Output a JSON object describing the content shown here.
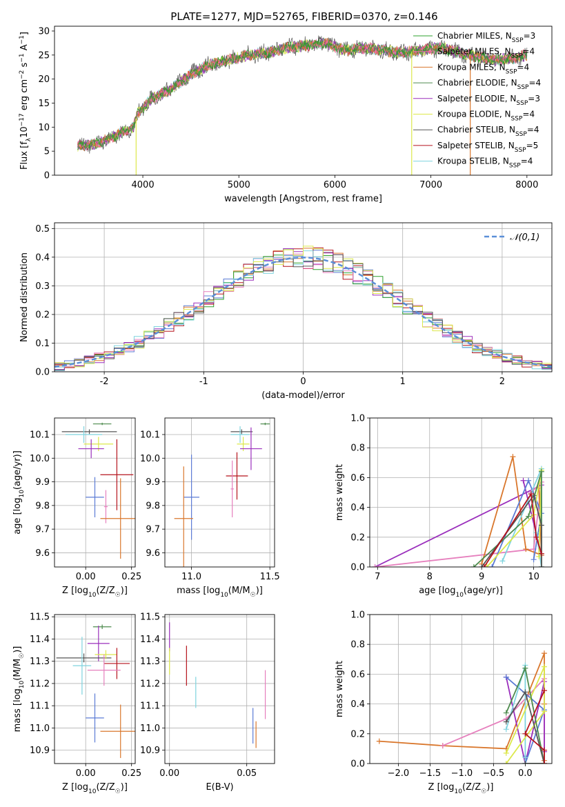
{
  "figure": {
    "title": "PLATE=1277, MJD=52765, FIBERID=0370, z=0.146"
  },
  "chart_data": [
    {
      "id": "spectrum",
      "type": "line",
      "title": "PLATE=1277, MJD=52765, FIBERID=0370, z=0.146",
      "xlabel": "wavelength [Angstrom, rest frame]",
      "ylabel": "Flux [f_λ 10^-17 erg cm^-2 s^-1 A^-1]",
      "xlim": [
        3080,
        8260
      ],
      "ylim": [
        0,
        31
      ],
      "xticks": [
        4000,
        5000,
        6000,
        7000,
        8000
      ],
      "yticks": [
        0,
        5,
        10,
        15,
        20,
        25,
        30
      ],
      "grid": false,
      "legend_position": "top-right",
      "continuum": {
        "x": [
          3320,
          3500,
          3700,
          3900,
          3950,
          4100,
          4300,
          4500,
          4700,
          4900,
          5100,
          5300,
          5500,
          5700,
          5900,
          6100,
          6300,
          6500,
          6700,
          6900,
          7100,
          7300,
          7500,
          7700,
          7900,
          8000
        ],
        "y": [
          6,
          6.5,
          8,
          10,
          13,
          16,
          18,
          21,
          23,
          24,
          25,
          25.5,
          26.5,
          27,
          27.5,
          26,
          26.5,
          26,
          25.5,
          26,
          26.5,
          25.5,
          24.5,
          24,
          24.5,
          25
        ]
      },
      "drops": [
        {
          "x": 3930,
          "series": "Kroupa ELODIE"
        },
        {
          "x": 6800,
          "series": "Kroupa ELODIE"
        },
        {
          "x": 7410,
          "series": "Kroupa MILES"
        }
      ],
      "series": [
        {
          "name": "Chabrier MILES",
          "nssp": "3",
          "color": "#2ca02c"
        },
        {
          "name": "Salpeter MILES",
          "nssp": "4",
          "color": "#f06ba8"
        },
        {
          "name": "Kroupa MILES",
          "nssp": "4",
          "color": "#d9762b"
        },
        {
          "name": "Chabrier ELODIE",
          "nssp": "4",
          "color": "#4d8a4d"
        },
        {
          "name": "Salpeter ELODIE",
          "nssp": "3",
          "color": "#9a2ebc"
        },
        {
          "name": "Kroupa ELODIE",
          "nssp": "4",
          "color": "#dce84a"
        },
        {
          "name": "Chabrier STELIB",
          "nssp": "4",
          "color": "#555555"
        },
        {
          "name": "Salpeter STELIB",
          "nssp": "5",
          "color": "#b5121b"
        },
        {
          "name": "Kroupa STELIB",
          "nssp": "4",
          "color": "#7ed3de"
        }
      ]
    },
    {
      "id": "residuals",
      "type": "histogram",
      "xlabel": "(data-model)/error",
      "ylabel": "Normed distribution",
      "xlim": [
        -2.5,
        2.5
      ],
      "ylim": [
        0,
        0.52
      ],
      "xticks": [
        -2,
        -1,
        0,
        1,
        2
      ],
      "yticks": [
        0.0,
        0.1,
        0.2,
        0.3,
        0.4,
        0.5
      ],
      "grid": true,
      "legend_position": "top-right",
      "legend_label": "𝒩(0,1)",
      "bin_width": 0.1,
      "sigma": 1.0,
      "peak": 0.399,
      "colors": [
        "#5b7bd5",
        "#d9762b",
        "#2ca02c",
        "#b5121b",
        "#9a2ebc",
        "#e67fbd",
        "#7ed3de",
        "#dce84a",
        "#555555"
      ],
      "reference_color": "#5b8fd8"
    },
    {
      "id": "age-vs-Z",
      "type": "errorbar",
      "xlabel": "Z [log10(Z/Z☉)]",
      "ylabel": "age  [log10(age/yr)]",
      "xlim": [
        -0.17,
        0.27
      ],
      "ylim": [
        9.54,
        10.17
      ],
      "xticks": [
        0.0,
        0.25
      ],
      "xticklabels": [
        "0.00",
        "0.25"
      ],
      "yticks": [
        9.6,
        9.7,
        9.8,
        9.9,
        10.0,
        10.1
      ],
      "grid": true,
      "points": [
        {
          "x": 0.09,
          "y": 10.145,
          "xerr": 0.05,
          "yerr": 0.005,
          "color": "#4d8a4d"
        },
        {
          "x": 0.02,
          "y": 10.112,
          "xerr": 0.15,
          "yerr": 0.01,
          "color": "#555555"
        },
        {
          "x": -0.01,
          "y": 10.1,
          "xerr": 0.1,
          "yerr": 0.035,
          "color": "#7ed3de"
        },
        {
          "x": 0.07,
          "y": 10.06,
          "xerr": 0.08,
          "yerr": 0.03,
          "color": "#dce84a"
        },
        {
          "x": 0.03,
          "y": 10.04,
          "xerr": 0.07,
          "yerr": 0.04,
          "color": "#9a2ebc"
        },
        {
          "x": 0.17,
          "y": 9.93,
          "xerr": 0.09,
          "yerr": 0.15,
          "color": "#b5121b"
        },
        {
          "x": 0.05,
          "y": 9.835,
          "xerr": 0.05,
          "yerr": 0.085,
          "color": "#5b7bd5"
        },
        {
          "x": 0.11,
          "y": 9.795,
          "xerr": 0.01,
          "yerr": 0.07,
          "color": "#e67fbd"
        },
        {
          "x": 0.19,
          "y": 9.745,
          "xerr": 0.11,
          "yerr": 0.17,
          "color": "#d9762b"
        }
      ]
    },
    {
      "id": "age-vs-mass",
      "type": "errorbar",
      "xlabel": "mass [log10(M/M☉)]",
      "ylabel": "",
      "xlim": [
        10.83,
        11.53
      ],
      "ylim": [
        9.54,
        10.17
      ],
      "xticks": [
        11.0,
        11.5
      ],
      "xticklabels": [
        "11.0",
        "11.5"
      ],
      "yticks": [
        9.6,
        9.7,
        9.8,
        9.9,
        10.0,
        10.1
      ],
      "grid": true,
      "points": [
        {
          "x": 11.47,
          "y": 10.145,
          "xerr": 0.03,
          "yerr": 0.005,
          "color": "#4d8a4d"
        },
        {
          "x": 11.32,
          "y": 10.112,
          "xerr": 0.07,
          "yerr": 0.01,
          "color": "#555555"
        },
        {
          "x": 11.31,
          "y": 10.1,
          "xerr": 0.06,
          "yerr": 0.035,
          "color": "#7ed3de"
        },
        {
          "x": 11.33,
          "y": 10.06,
          "xerr": 0.04,
          "yerr": 0.03,
          "color": "#dce84a"
        },
        {
          "x": 11.38,
          "y": 10.04,
          "xerr": 0.07,
          "yerr": 0.09,
          "color": "#9a2ebc"
        },
        {
          "x": 11.29,
          "y": 9.925,
          "xerr": 0.07,
          "yerr": 0.1,
          "color": "#b5121b"
        },
        {
          "x": 11.0,
          "y": 9.835,
          "xerr": 0.05,
          "yerr": 0.18,
          "color": "#5b7bd5"
        },
        {
          "x": 11.26,
          "y": 9.87,
          "xerr": 0.01,
          "yerr": 0.12,
          "color": "#e67fbd"
        },
        {
          "x": 10.95,
          "y": 9.745,
          "xerr": 0.06,
          "yerr": 0.22,
          "color": "#d9762b"
        }
      ]
    },
    {
      "id": "weight-vs-age",
      "type": "line",
      "xlabel": "age  [log10(age/yr)]",
      "ylabel": "mass weight",
      "xlim": [
        6.85,
        10.35
      ],
      "ylim": [
        0,
        1
      ],
      "xticks": [
        7,
        8,
        9,
        10
      ],
      "yticks": [
        0.0,
        0.2,
        0.4,
        0.6,
        0.8,
        1.0
      ],
      "grid": true,
      "series": [
        {
          "color": "#9a2ebc",
          "x": [
            6.95,
            10.15,
            10.15,
            9.8
          ],
          "y": [
            0.0,
            0.55,
            0.08,
            0.58
          ]
        },
        {
          "color": "#e67fbd",
          "x": [
            6.95,
            10.0,
            10.15,
            9.95
          ],
          "y": [
            0.0,
            0.12,
            0.57,
            0.5
          ]
        },
        {
          "color": "#d9762b",
          "x": [
            9.0,
            9.6,
            9.85,
            10.15,
            10.1
          ],
          "y": [
            0.02,
            0.74,
            0.12,
            0.08,
            0.53
          ]
        },
        {
          "color": "#5b7bd5",
          "x": [
            9.2,
            9.9,
            10.15,
            10.0
          ],
          "y": [
            0.0,
            0.58,
            0.36,
            0.05
          ]
        },
        {
          "color": "#7ed3de",
          "x": [
            9.4,
            10.15,
            10.15,
            10.05
          ],
          "y": [
            0.04,
            0.66,
            0.0,
            0.23
          ]
        },
        {
          "color": "#dce84a",
          "x": [
            9.1,
            10.0,
            10.15,
            10.1
          ],
          "y": [
            0.0,
            0.35,
            0.65,
            0.07
          ]
        },
        {
          "color": "#4d8a4d",
          "x": [
            8.85,
            9.9,
            10.15,
            10.15
          ],
          "y": [
            0.0,
            0.34,
            0.64,
            0.0
          ]
        },
        {
          "color": "#555555",
          "x": [
            9.0,
            10.0,
            10.15,
            10.15
          ],
          "y": [
            0.0,
            0.48,
            0.28,
            0.0
          ]
        },
        {
          "color": "#b5121b",
          "x": [
            9.05,
            9.95,
            10.05,
            10.15
          ],
          "y": [
            0.0,
            0.49,
            0.2,
            0.09
          ]
        }
      ]
    },
    {
      "id": "mass-vs-Z",
      "type": "errorbar",
      "xlabel": "Z [log10(Z/Z☉)]",
      "ylabel": "mass [log10(M/M☉)]",
      "xlim": [
        -0.17,
        0.27
      ],
      "ylim": [
        10.84,
        11.51
      ],
      "xticks": [
        0.0,
        0.25
      ],
      "xticklabels": [
        "0.00",
        "0.25"
      ],
      "yticks": [
        10.9,
        11.0,
        11.1,
        11.2,
        11.3,
        11.4,
        11.5
      ],
      "grid": true,
      "points": [
        {
          "x": 0.09,
          "y": 11.455,
          "xerr": 0.05,
          "yerr": 0.01,
          "color": "#4d8a4d"
        },
        {
          "x": 0.07,
          "y": 11.38,
          "xerr": 0.06,
          "yerr": 0.08,
          "color": "#9a2ebc"
        },
        {
          "x": -0.01,
          "y": 11.315,
          "xerr": 0.15,
          "yerr": 0.02,
          "color": "#555555"
        },
        {
          "x": 0.11,
          "y": 11.33,
          "xerr": 0.06,
          "yerr": 0.02,
          "color": "#dce84a"
        },
        {
          "x": 0.17,
          "y": 11.29,
          "xerr": 0.07,
          "yerr": 0.07,
          "color": "#b5121b"
        },
        {
          "x": -0.02,
          "y": 11.28,
          "xerr": 0.05,
          "yerr": 0.13,
          "color": "#7ed3de"
        },
        {
          "x": 0.1,
          "y": 11.26,
          "xerr": 0.09,
          "yerr": 0.07,
          "color": "#e67fbd"
        },
        {
          "x": 0.05,
          "y": 11.045,
          "xerr": 0.05,
          "yerr": 0.11,
          "color": "#5b7bd5"
        },
        {
          "x": 0.19,
          "y": 10.985,
          "xerr": 0.11,
          "yerr": 0.12,
          "color": "#d9762b"
        }
      ]
    },
    {
      "id": "mass-vs-ebv",
      "type": "errorbar",
      "xlabel": "E(B-V)",
      "ylabel": "",
      "xlim": [
        -0.003,
        0.068
      ],
      "ylim": [
        10.84,
        11.51
      ],
      "xticks": [
        0.0,
        0.05
      ],
      "xticklabels": [
        "0.00",
        "0.05"
      ],
      "yticks": [
        10.9,
        11.0,
        11.1,
        11.2,
        11.3,
        11.4,
        11.5
      ],
      "grid": true,
      "points": [
        {
          "x": 0.0,
          "y": 11.41,
          "xerr": 0.0,
          "yerr": 0.065,
          "color": "#9a2ebc"
        },
        {
          "x": 0.0,
          "y": 11.3,
          "xerr": 0.0,
          "yerr": 0.06,
          "color": "#dce84a"
        },
        {
          "x": 0.011,
          "y": 11.28,
          "xerr": 0.0,
          "yerr": 0.09,
          "color": "#b5121b"
        },
        {
          "x": 0.017,
          "y": 11.16,
          "xerr": 0.0,
          "yerr": 0.07,
          "color": "#7ed3de"
        },
        {
          "x": 0.054,
          "y": 11.01,
          "xerr": 0.0,
          "yerr": 0.08,
          "color": "#5b7bd5"
        },
        {
          "x": 0.056,
          "y": 10.97,
          "xerr": 0.0,
          "yerr": 0.06,
          "color": "#d9762b"
        },
        {
          "x": 0.062,
          "y": 11.15,
          "xerr": 0.0,
          "yerr": 0.11,
          "color": "#e67fbd"
        }
      ]
    },
    {
      "id": "weight-vs-Z",
      "type": "line",
      "xlabel": "Z [log10(Z/Z☉)]",
      "ylabel": "mass weight",
      "xlim": [
        -2.45,
        0.42
      ],
      "ylim": [
        0,
        1
      ],
      "xticks": [
        -2.0,
        -1.5,
        -1.0,
        -0.5,
        0.0
      ],
      "yticks": [
        0.0,
        0.2,
        0.4,
        0.6,
        0.8,
        1.0
      ],
      "grid": true,
      "series": [
        {
          "color": "#d9762b",
          "x": [
            -2.3,
            -1.3,
            -0.3,
            0.3,
            0.3,
            0.3
          ],
          "y": [
            0.15,
            0.12,
            0.1,
            0.74,
            0.02,
            0.4
          ]
        },
        {
          "color": "#e67fbd",
          "x": [
            -1.3,
            -0.3,
            0.3,
            0.3
          ],
          "y": [
            0.12,
            0.3,
            0.57,
            0.0
          ]
        },
        {
          "color": "#9a2ebc",
          "x": [
            -0.3,
            0.0,
            0.3,
            0.3
          ],
          "y": [
            0.58,
            0.0,
            0.55,
            0.08
          ]
        },
        {
          "color": "#5b7bd5",
          "x": [
            -0.3,
            0.3,
            0.0,
            0.0
          ],
          "y": [
            0.58,
            0.36,
            0.0,
            0.05
          ]
        },
        {
          "color": "#7ed3de",
          "x": [
            -0.3,
            0.0,
            0.0,
            0.0
          ],
          "y": [
            0.23,
            0.66,
            0.0,
            0.04
          ]
        },
        {
          "color": "#dce84a",
          "x": [
            -0.3,
            0.3,
            0.3,
            -0.3
          ],
          "y": [
            0.07,
            0.65,
            0.35,
            0.0
          ]
        },
        {
          "color": "#4d8a4d",
          "x": [
            -0.3,
            0.0,
            0.3,
            0.0
          ],
          "y": [
            0.34,
            0.64,
            0.0,
            0.0
          ]
        },
        {
          "color": "#555555",
          "x": [
            -0.3,
            0.0,
            0.3,
            0.0
          ],
          "y": [
            0.28,
            0.48,
            0.0,
            0.0
          ]
        },
        {
          "color": "#b5121b",
          "x": [
            0.3,
            0.0,
            0.3,
            0.3
          ],
          "y": [
            0.49,
            0.2,
            0.09,
            0.0
          ]
        }
      ]
    }
  ]
}
